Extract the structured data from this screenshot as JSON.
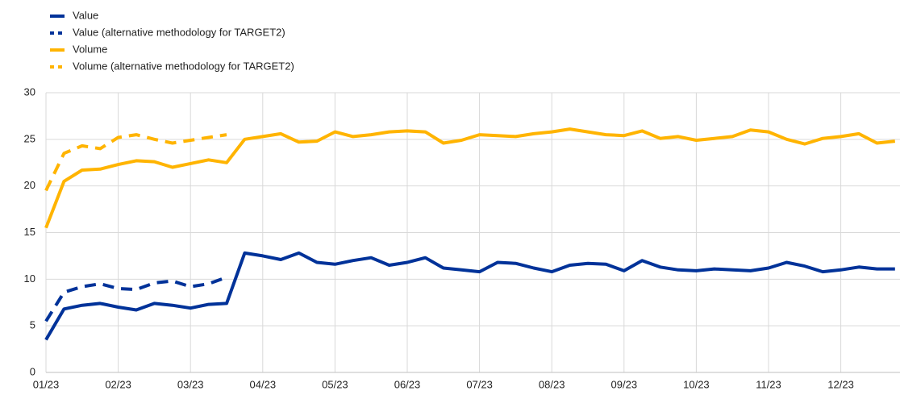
{
  "chart_data": {
    "type": "line",
    "categories": [
      "01/23",
      null,
      null,
      null,
      "02/23",
      null,
      null,
      null,
      "03/23",
      null,
      null,
      null,
      "04/23",
      null,
      null,
      null,
      "05/23",
      null,
      null,
      null,
      "06/23",
      null,
      null,
      null,
      "07/23",
      null,
      null,
      null,
      "08/23",
      null,
      null,
      null,
      "09/23",
      null,
      null,
      null,
      "10/23",
      null,
      null,
      null,
      "11/23",
      null,
      null,
      null,
      "12/23",
      null,
      null,
      null
    ],
    "series": [
      {
        "name": "Value",
        "color": "#003299",
        "style": "solid",
        "values": [
          3.5,
          6.8,
          7.2,
          7.4,
          7.0,
          6.7,
          7.4,
          7.2,
          6.9,
          7.3,
          7.4,
          12.8,
          12.5,
          12.1,
          12.8,
          11.8,
          11.6,
          12.0,
          12.3,
          11.5,
          11.8,
          12.3,
          11.2,
          11.0,
          10.8,
          11.8,
          11.7,
          11.2,
          10.8,
          11.5,
          11.7,
          11.6,
          10.9,
          12.0,
          11.3,
          11.0,
          10.9,
          11.1,
          11.0,
          10.9,
          11.2,
          11.8,
          11.4,
          10.8,
          11.0,
          11.3,
          11.1,
          11.1
        ]
      },
      {
        "name": "Value (alternative methodology for TARGET2)",
        "color": "#003299",
        "style": "dashed",
        "values": [
          5.5,
          8.6,
          9.2,
          9.5,
          9.0,
          8.9,
          9.6,
          9.8,
          9.2,
          9.5,
          10.2,
          null,
          null,
          null,
          null,
          null,
          null,
          null,
          null,
          null,
          null,
          null,
          null,
          null,
          null,
          null,
          null,
          null,
          null,
          null,
          null,
          null,
          null,
          null,
          null,
          null,
          null,
          null,
          null,
          null,
          null,
          null,
          null,
          null,
          null,
          null,
          null,
          null
        ]
      },
      {
        "name": "Volume",
        "color": "#ffb400",
        "style": "solid",
        "values": [
          15.5,
          20.5,
          21.7,
          21.8,
          22.3,
          22.7,
          22.6,
          22.0,
          22.4,
          22.8,
          22.5,
          25.0,
          25.3,
          25.6,
          24.7,
          24.8,
          25.8,
          25.3,
          25.5,
          25.8,
          25.9,
          25.8,
          24.6,
          24.9,
          25.5,
          25.4,
          25.3,
          25.6,
          25.8,
          26.1,
          25.8,
          25.5,
          25.4,
          25.9,
          25.1,
          25.3,
          24.9,
          25.1,
          25.3,
          26.0,
          25.8,
          25.0,
          24.5,
          25.1,
          25.3,
          25.6,
          24.6,
          24.8
        ]
      },
      {
        "name": "Volume (alternative methodology for TARGET2)",
        "color": "#ffb400",
        "style": "dashed",
        "values": [
          19.5,
          23.5,
          24.3,
          24.0,
          25.2,
          25.5,
          25.0,
          24.6,
          24.9,
          25.2,
          25.5,
          null,
          null,
          null,
          null,
          null,
          null,
          null,
          null,
          null,
          null,
          null,
          null,
          null,
          null,
          null,
          null,
          null,
          null,
          null,
          null,
          null,
          null,
          null,
          null,
          null,
          null,
          null,
          null,
          null,
          null,
          null,
          null,
          null,
          null,
          null,
          null,
          null
        ]
      }
    ],
    "ylim": [
      0,
      30
    ],
    "yticks": [
      0,
      5,
      10,
      15,
      20,
      25,
      30
    ],
    "grid": true,
    "legend": "top-left"
  }
}
